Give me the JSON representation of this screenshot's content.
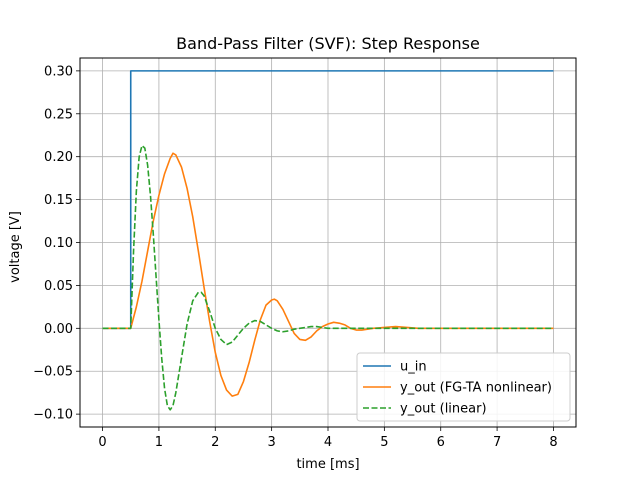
{
  "chart_data": {
    "type": "line",
    "title": "Band-Pass Filter (SVF): Step Response",
    "xlabel": "time [ms]",
    "ylabel": "voltage [V]",
    "xlim": [
      -0.4,
      8.4
    ],
    "ylim": [
      -0.115,
      0.315
    ],
    "xticks": [
      0,
      1,
      2,
      3,
      4,
      5,
      6,
      7,
      8
    ],
    "yticks": [
      -0.1,
      -0.05,
      0.0,
      0.05,
      0.1,
      0.15,
      0.2,
      0.25,
      0.3
    ],
    "ytick_labels": [
      "−0.10",
      "−0.05",
      "0.00",
      "0.05",
      "0.10",
      "0.15",
      "0.20",
      "0.25",
      "0.30"
    ],
    "grid": true,
    "legend_position": "lower-right",
    "series": [
      {
        "name": "u_in",
        "color": "#1f77b4",
        "style": "solid",
        "x": [
          0,
          0.5,
          0.5,
          8
        ],
        "y": [
          0,
          0,
          0.3,
          0.3
        ]
      },
      {
        "name": "y_out (FG-TA nonlinear)",
        "color": "#ff7f0e",
        "style": "solid",
        "x": [
          0,
          0.5,
          0.6,
          0.7,
          0.8,
          0.9,
          1.0,
          1.1,
          1.2,
          1.25,
          1.3,
          1.4,
          1.5,
          1.6,
          1.7,
          1.8,
          1.9,
          2.0,
          2.1,
          2.2,
          2.3,
          2.4,
          2.5,
          2.6,
          2.7,
          2.8,
          2.9,
          3.0,
          3.05,
          3.1,
          3.2,
          3.3,
          3.4,
          3.5,
          3.6,
          3.7,
          3.8,
          3.9,
          4.0,
          4.1,
          4.2,
          4.3,
          4.4,
          4.5,
          4.6,
          4.8,
          5.0,
          5.2,
          5.4,
          5.6,
          6.0,
          7.0,
          8.0
        ],
        "y": [
          0,
          0,
          0.025,
          0.055,
          0.09,
          0.125,
          0.155,
          0.18,
          0.198,
          0.204,
          0.202,
          0.188,
          0.163,
          0.13,
          0.09,
          0.048,
          0.008,
          -0.028,
          -0.055,
          -0.072,
          -0.079,
          -0.077,
          -0.062,
          -0.04,
          -0.014,
          0.01,
          0.027,
          0.033,
          0.034,
          0.032,
          0.022,
          0.008,
          -0.006,
          -0.013,
          -0.014,
          -0.01,
          -0.003,
          0.002,
          0.005,
          0.007,
          0.006,
          0.004,
          0.0,
          -0.002,
          -0.002,
          0.0,
          0.001,
          0.002,
          0.001,
          0.0,
          0.0,
          0.0,
          0.0
        ]
      },
      {
        "name": "y_out (linear)",
        "color": "#2ca02c",
        "style": "dashed",
        "x": [
          0,
          0.5,
          0.55,
          0.6,
          0.65,
          0.7,
          0.75,
          0.8,
          0.85,
          0.9,
          0.95,
          1.0,
          1.05,
          1.1,
          1.15,
          1.2,
          1.25,
          1.3,
          1.4,
          1.5,
          1.6,
          1.7,
          1.75,
          1.8,
          1.9,
          2.0,
          2.1,
          2.2,
          2.3,
          2.4,
          2.5,
          2.6,
          2.7,
          2.8,
          2.9,
          3.0,
          3.1,
          3.2,
          3.3,
          3.4,
          3.5,
          3.6,
          3.7,
          3.8,
          3.9,
          4.0,
          4.2,
          4.4,
          4.6,
          4.8,
          5.0,
          5.5,
          6.0,
          7.0,
          8.0
        ],
        "y": [
          0,
          0,
          0.09,
          0.16,
          0.2,
          0.213,
          0.21,
          0.19,
          0.155,
          0.11,
          0.06,
          0.01,
          -0.035,
          -0.07,
          -0.09,
          -0.095,
          -0.09,
          -0.075,
          -0.035,
          0.005,
          0.032,
          0.042,
          0.042,
          0.038,
          0.02,
          0.0,
          -0.013,
          -0.019,
          -0.016,
          -0.008,
          0.0,
          0.006,
          0.009,
          0.008,
          0.004,
          0.0,
          -0.003,
          -0.004,
          -0.003,
          -0.001,
          0.0,
          0.001,
          0.002,
          0.002,
          0.001,
          0.0,
          0.0,
          0.0,
          0.0,
          0.0,
          0.0,
          0.0,
          0.0,
          0.0,
          0.0
        ]
      }
    ]
  }
}
